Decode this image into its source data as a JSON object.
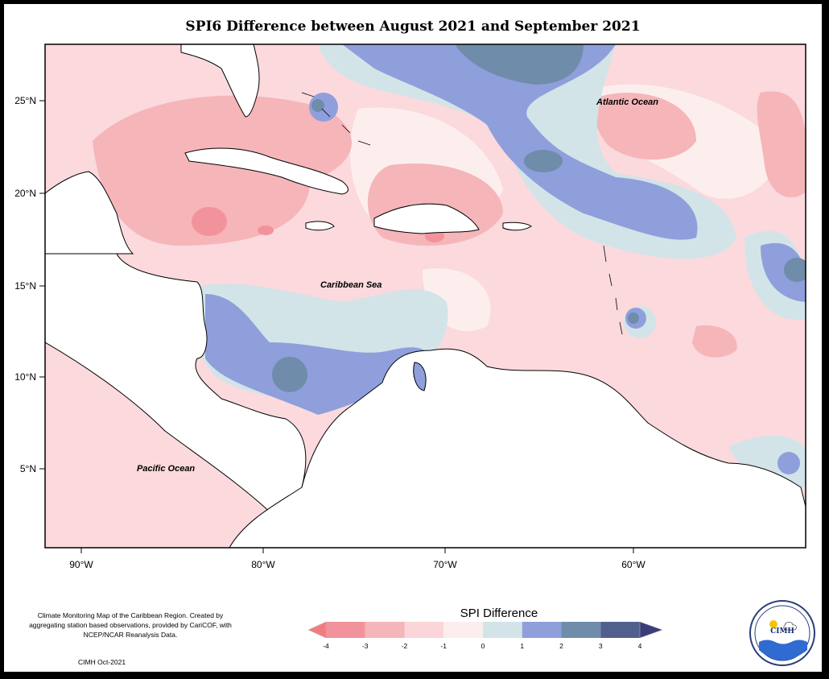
{
  "title": "SPI6 Difference between August 2021 and September 2021",
  "map": {
    "lat_ticks": [
      "25°N",
      "20°N",
      "15°N",
      "10°N",
      "5°N"
    ],
    "lon_ticks": [
      "90°W",
      "80°W",
      "70°W",
      "60°W"
    ],
    "labels": {
      "atlantic": "Atlantic Ocean",
      "caribbean": "Caribbean Sea",
      "pacific": "Pacific Ocean"
    }
  },
  "legend": {
    "title": "SPI Difference",
    "ticks": [
      "-4",
      "-3",
      "-2",
      "-1",
      "0",
      "1",
      "2",
      "3",
      "4"
    ],
    "colors": [
      "#f2939b",
      "#f5b5b9",
      "#fbd5d9",
      "#fdeeee",
      "#d2e4e8",
      "#8f9fdc",
      "#6f8cab",
      "#515f8f"
    ],
    "arrow_low": "#f07c82",
    "arrow_high": "#3b3d78"
  },
  "credit": {
    "text": "Climate Monitoring Map of the Caribbean Region. Created by aggregating station based observations, provided by CariCOF, with NCEP/NCAR Reanalysis Data.",
    "date": "CIMH Oct-2021"
  },
  "logo": {
    "text": "CIMH"
  }
}
